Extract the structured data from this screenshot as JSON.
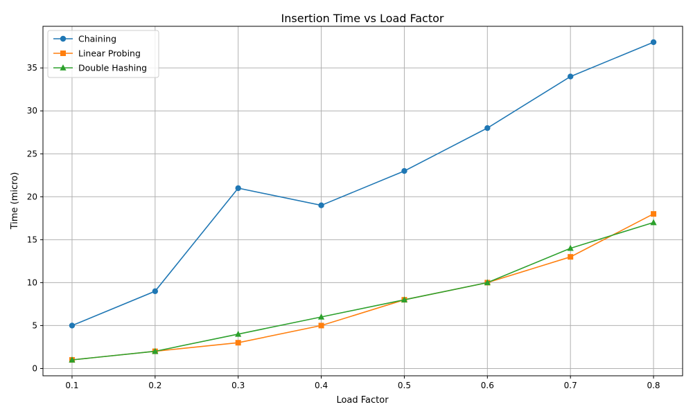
{
  "chart_data": {
    "type": "line",
    "title": "Insertion Time vs Load Factor",
    "xlabel": "Load Factor",
    "ylabel": "Time (micro)",
    "x": [
      0.1,
      0.2,
      0.3,
      0.4,
      0.5,
      0.6,
      0.7,
      0.8
    ],
    "x_tick_labels": [
      "0.1",
      "0.2",
      "0.3",
      "0.4",
      "0.5",
      "0.6",
      "0.7",
      "0.8"
    ],
    "y_ticks": [
      0,
      5,
      10,
      15,
      20,
      25,
      30,
      35
    ],
    "y_tick_labels": [
      "0",
      "5",
      "10",
      "15",
      "20",
      "25",
      "30",
      "35"
    ],
    "xlim": [
      0.065,
      0.835
    ],
    "ylim": [
      -0.85,
      39.85
    ],
    "grid": true,
    "legend_position": "top-left",
    "series": [
      {
        "name": "Chaining",
        "color": "#1f77b4",
        "marker": "circle",
        "values": [
          5,
          9,
          21,
          19,
          23,
          28,
          34,
          38
        ]
      },
      {
        "name": "Linear Probing",
        "color": "#ff7f0e",
        "marker": "square",
        "values": [
          1,
          2,
          3,
          5,
          8,
          10,
          13,
          18
        ]
      },
      {
        "name": "Double Hashing",
        "color": "#2ca02c",
        "marker": "triangle",
        "values": [
          1,
          2,
          4,
          6,
          8,
          10,
          14,
          17
        ]
      }
    ]
  }
}
